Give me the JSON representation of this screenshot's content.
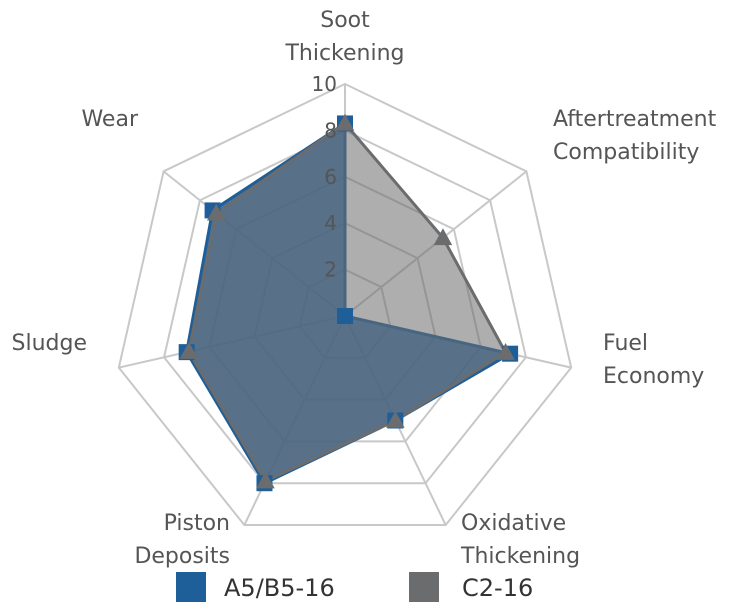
{
  "chart_data": {
    "type": "radar",
    "title": "",
    "axes": [
      [
        "Soot",
        "Thickening"
      ],
      [
        "Aftertreatment",
        "Compatibility"
      ],
      [
        "Fuel",
        "Economy"
      ],
      [
        "Oxidative",
        "Thickening"
      ],
      [
        "Piston",
        "Deposits"
      ],
      [
        "Sludge"
      ],
      [
        "Wear"
      ]
    ],
    "ticks": [
      "2",
      "4",
      "6",
      "8",
      "10"
    ],
    "rlim": [
      0,
      10
    ],
    "grid": true,
    "legend_position": "bottom",
    "series": [
      {
        "name": "A5/B5-16",
        "values": [
          8.3,
          0.0,
          7.3,
          5.0,
          8.0,
          7.0,
          7.3
        ],
        "color": "#1f5f99",
        "marker": "square"
      },
      {
        "name": "C2-16",
        "values": [
          8.3,
          5.4,
          7.1,
          5.0,
          7.9,
          6.9,
          7.1
        ],
        "color": "#6b6c6e",
        "marker": "triangle"
      }
    ]
  }
}
